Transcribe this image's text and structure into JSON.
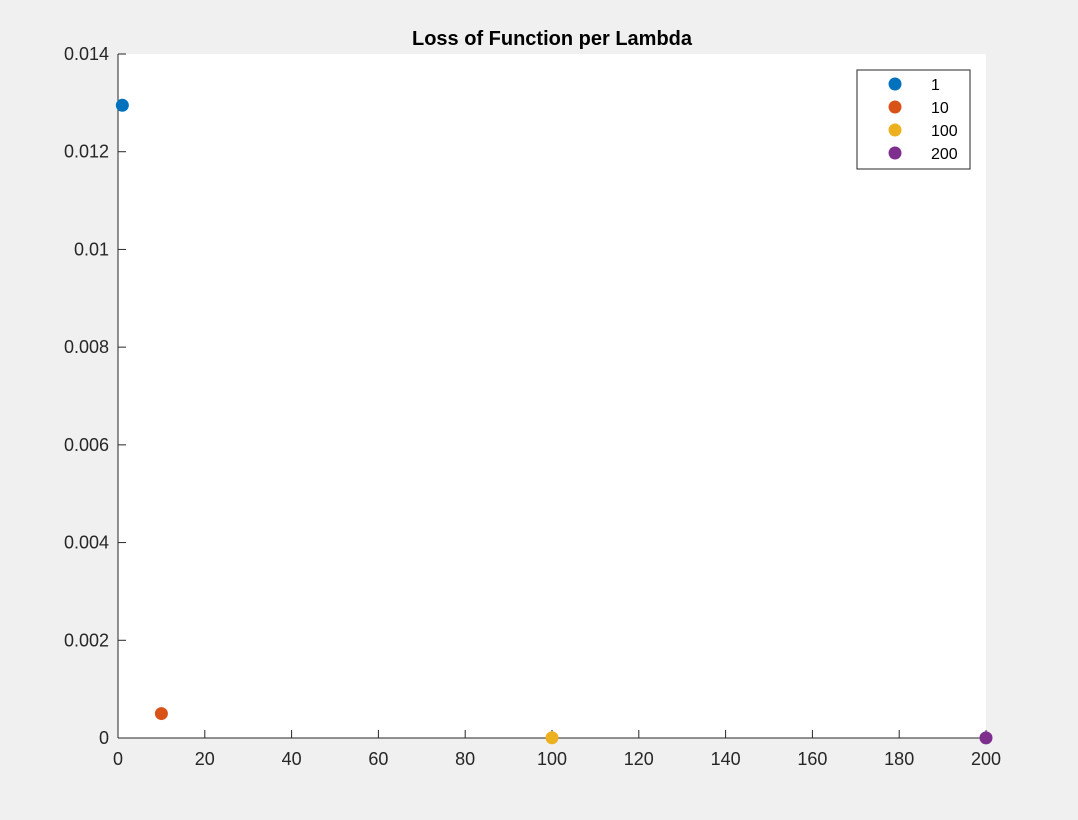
{
  "chart_data": {
    "type": "scatter",
    "title": "Loss of Function per Lambda",
    "xlabel": "",
    "ylabel": "",
    "xlim": [
      0,
      200
    ],
    "ylim": [
      0,
      0.014
    ],
    "x_ticks": [
      0,
      20,
      40,
      60,
      80,
      100,
      120,
      140,
      160,
      180,
      200
    ],
    "x_tick_labels": [
      "0",
      "20",
      "40",
      "60",
      "80",
      "100",
      "120",
      "140",
      "160",
      "180",
      "200"
    ],
    "y_ticks": [
      0,
      0.002,
      0.004,
      0.006,
      0.008,
      0.01,
      0.012,
      0.014
    ],
    "y_tick_labels": [
      "0",
      "0.002",
      "0.004",
      "0.006",
      "0.008",
      "0.01",
      "0.012",
      "0.014"
    ],
    "grid": false,
    "legend_position": "top-right",
    "series": [
      {
        "name": "1",
        "color": "#0072bd",
        "x": [
          1
        ],
        "y": [
          0.01295
        ]
      },
      {
        "name": "10",
        "color": "#d95319",
        "x": [
          10
        ],
        "y": [
          0.0005
        ]
      },
      {
        "name": "100",
        "color": "#edb120",
        "x": [
          100
        ],
        "y": [
          5e-06
        ]
      },
      {
        "name": "200",
        "color": "#7e2f8e",
        "x": [
          200
        ],
        "y": [
          2e-06
        ]
      }
    ]
  }
}
